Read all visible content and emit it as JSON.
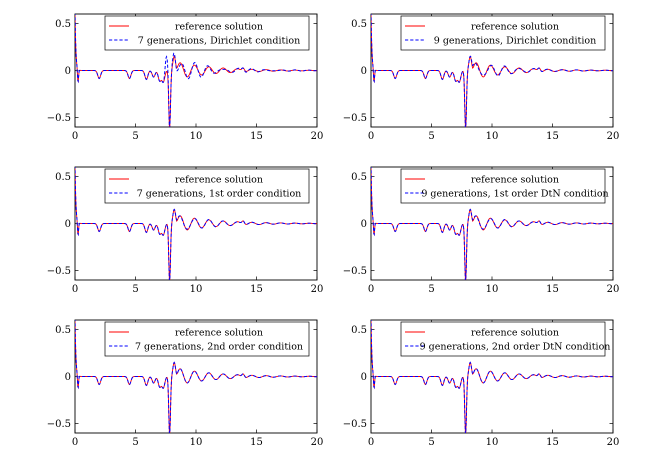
{
  "chart_data": [
    {
      "type": "line",
      "xlim": [
        0,
        20
      ],
      "ylim": [
        -0.6,
        0.6
      ],
      "x_ticks": [
        "0",
        "5",
        "10",
        "15",
        "20"
      ],
      "y_ticks": [
        "0.5",
        "0",
        "-0.5"
      ],
      "legend_position": "top-right",
      "variant": "dirichlet7",
      "series": [
        {
          "name": "reference solution",
          "color": "#ff0000",
          "style": "solid"
        },
        {
          "name": "7 generations, Dirichlet condition",
          "color": "#0000ff",
          "style": "dashed"
        }
      ]
    },
    {
      "type": "line",
      "xlim": [
        0,
        20
      ],
      "ylim": [
        -0.6,
        0.6
      ],
      "x_ticks": [
        "0",
        "5",
        "10",
        "15",
        "20"
      ],
      "y_ticks": [
        "0.5",
        "0",
        "-0.5"
      ],
      "legend_position": "top-right",
      "variant": "dirichlet9",
      "series": [
        {
          "name": "reference solution",
          "color": "#ff0000",
          "style": "solid"
        },
        {
          "name": "9 generations, Dirichlet condition",
          "color": "#0000ff",
          "style": "dashed"
        }
      ]
    },
    {
      "type": "line",
      "xlim": [
        0,
        20
      ],
      "ylim": [
        -0.6,
        0.6
      ],
      "x_ticks": [
        "0",
        "5",
        "10",
        "15",
        "20"
      ],
      "y_ticks": [
        "0.5",
        "0",
        "-0.5"
      ],
      "legend_position": "top-right",
      "variant": "close",
      "series": [
        {
          "name": "reference solution",
          "color": "#ff0000",
          "style": "solid"
        },
        {
          "name": "7 generations, 1st order condition",
          "color": "#0000ff",
          "style": "dashed"
        }
      ]
    },
    {
      "type": "line",
      "xlim": [
        0,
        20
      ],
      "ylim": [
        -0.6,
        0.6
      ],
      "x_ticks": [
        "0",
        "5",
        "10",
        "15",
        "20"
      ],
      "y_ticks": [
        "0.5",
        "0",
        "-0.5"
      ],
      "legend_position": "top-right",
      "variant": "close",
      "series": [
        {
          "name": "reference solution",
          "color": "#ff0000",
          "style": "solid"
        },
        {
          "name": "9 generations, 1st order DtN condition",
          "color": "#0000ff",
          "style": "dashed"
        }
      ]
    },
    {
      "type": "line",
      "xlim": [
        0,
        20
      ],
      "ylim": [
        -0.6,
        0.6
      ],
      "x_ticks": [
        "0",
        "5",
        "10",
        "15",
        "20"
      ],
      "y_ticks": [
        "0.5",
        "0",
        "-0.5"
      ],
      "legend_position": "top-right",
      "variant": "exact",
      "series": [
        {
          "name": "reference solution",
          "color": "#ff0000",
          "style": "solid"
        },
        {
          "name": "7 generations, 2nd order condition",
          "color": "#0000ff",
          "style": "dashed"
        }
      ]
    },
    {
      "type": "line",
      "xlim": [
        0,
        20
      ],
      "ylim": [
        -0.6,
        0.6
      ],
      "x_ticks": [
        "0",
        "5",
        "10",
        "15",
        "20"
      ],
      "y_ticks": [
        "0.5",
        "0",
        "-0.5"
      ],
      "legend_position": "top-right",
      "variant": "exact",
      "series": [
        {
          "name": "reference solution",
          "color": "#ff0000",
          "style": "solid"
        },
        {
          "name": "9 generations, 2nd order DtN condition",
          "color": "#0000ff",
          "style": "dashed"
        }
      ]
    }
  ]
}
